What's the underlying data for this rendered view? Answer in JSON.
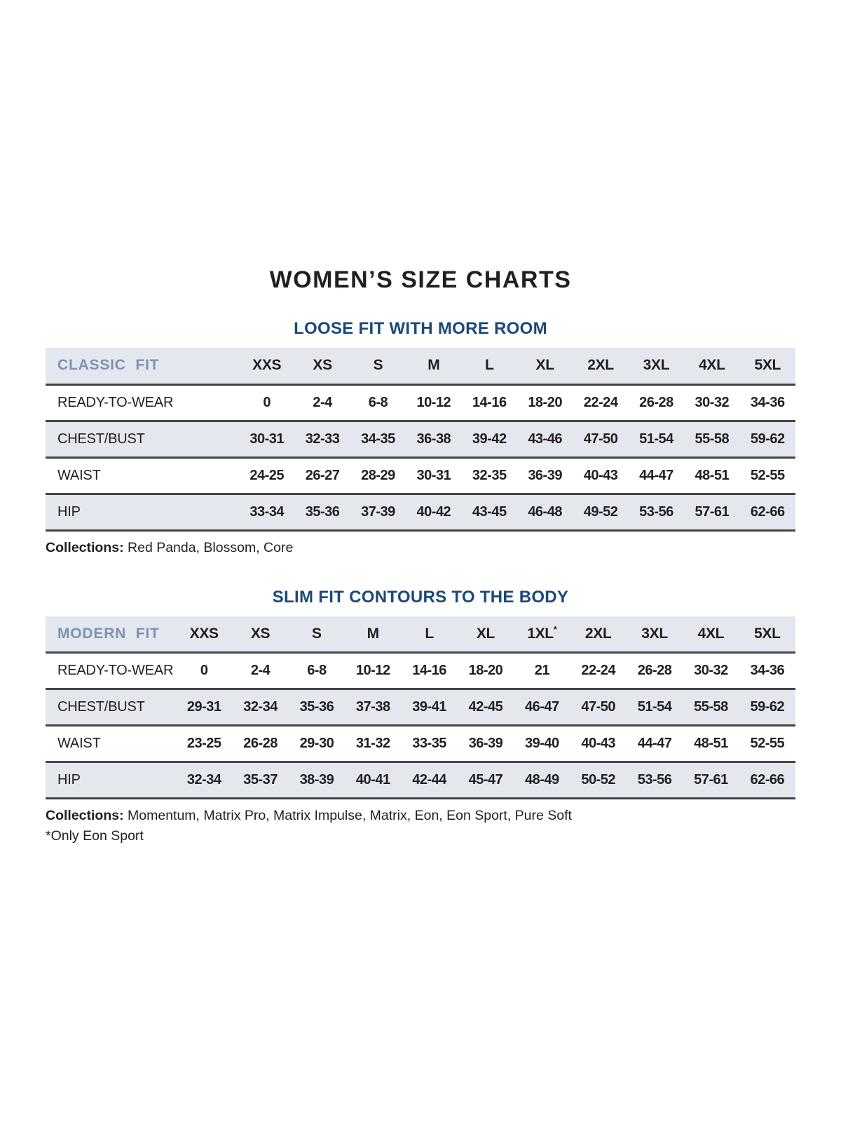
{
  "page": {
    "title": "WOMEN’S SIZE CHARTS"
  },
  "colors": {
    "heading_navy": "#1b4977",
    "fit_label_blue": "#7d92b4",
    "row_stripe_gray": "#e4e7ee",
    "row_border_dark": "#444446",
    "text_dark": "#231f20"
  },
  "sections": [
    {
      "heading": "LOOSE FIT WITH MORE ROOM",
      "table": {
        "fit_label": "CLASSIC  FIT",
        "sizes": [
          "XXS",
          "XS",
          "S",
          "M",
          "L",
          "XL",
          "2XL",
          "3XL",
          "4XL",
          "5XL"
        ],
        "rows": [
          {
            "label": "READY-TO-WEAR",
            "values": [
              "0",
              "2-4",
              "6-8",
              "10-12",
              "14-16",
              "18-20",
              "22-24",
              "26-28",
              "30-32",
              "34-36"
            ]
          },
          {
            "label": "CHEST/BUST",
            "values": [
              "30-31",
              "32-33",
              "34-35",
              "36-38",
              "39-42",
              "43-46",
              "47-50",
              "51-54",
              "55-58",
              "59-62"
            ]
          },
          {
            "label": "WAIST",
            "values": [
              "24-25",
              "26-27",
              "28-29",
              "30-31",
              "32-35",
              "36-39",
              "40-43",
              "44-47",
              "48-51",
              "52-55"
            ]
          },
          {
            "label": "HIP",
            "values": [
              "33-34",
              "35-36",
              "37-39",
              "40-42",
              "43-45",
              "46-48",
              "49-52",
              "53-56",
              "57-61",
              "62-66"
            ]
          }
        ]
      },
      "collections_label": "Collections:",
      "collections_value": " Red Panda, Blossom, Core"
    },
    {
      "heading": "SLIM FIT CONTOURS TO THE BODY",
      "table": {
        "fit_label": "MODERN  FIT",
        "sizes": [
          "XXS",
          "XS",
          "S",
          "M",
          "L",
          "XL",
          "1XL*",
          "2XL",
          "3XL",
          "4XL",
          "5XL"
        ],
        "rows": [
          {
            "label": "READY-TO-WEAR",
            "values": [
              "0",
              "2-4",
              "6-8",
              "10-12",
              "14-16",
              "18-20",
              "21",
              "22-24",
              "26-28",
              "30-32",
              "34-36"
            ]
          },
          {
            "label": "CHEST/BUST",
            "values": [
              "29-31",
              "32-34",
              "35-36",
              "37-38",
              "39-41",
              "42-45",
              "46-47",
              "47-50",
              "51-54",
              "55-58",
              "59-62"
            ]
          },
          {
            "label": "WAIST",
            "values": [
              "23-25",
              "26-28",
              "29-30",
              "31-32",
              "33-35",
              "36-39",
              "39-40",
              "40-43",
              "44-47",
              "48-51",
              "52-55"
            ]
          },
          {
            "label": "HIP",
            "values": [
              "32-34",
              "35-37",
              "38-39",
              "40-41",
              "42-44",
              "45-47",
              "48-49",
              "50-52",
              "53-56",
              "57-61",
              "62-66"
            ]
          }
        ]
      },
      "collections_label": "Collections:",
      "collections_value": " Momentum, Matrix Pro, Matrix Impulse, Matrix, Eon, Eon Sport, Pure Soft",
      "footnote": "*Only Eon Sport"
    }
  ]
}
